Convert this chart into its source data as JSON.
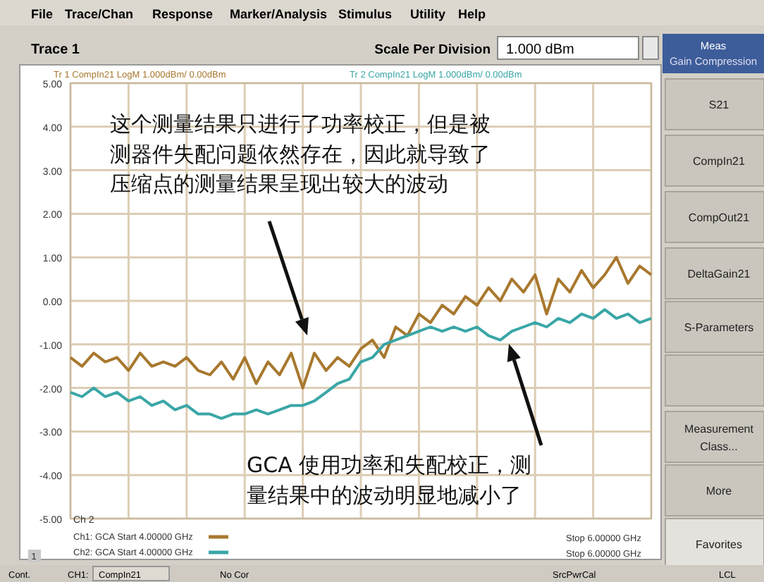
{
  "chart_data": {
    "type": "line",
    "categories": [
      null,
      null,
      null,
      null,
      null,
      null,
      null,
      null,
      null,
      null,
      null,
      null,
      null,
      null,
      null,
      null,
      null,
      null,
      null,
      null,
      null,
      null,
      null,
      null,
      null,
      null,
      null,
      null,
      null,
      null,
      null,
      null,
      null,
      null,
      null,
      null,
      null,
      null,
      null,
      null,
      null,
      null,
      null,
      null,
      null,
      null,
      null,
      null,
      null,
      null,
      null
    ],
    "ylim": [
      -5,
      5
    ],
    "yticks": [
      {
        "value": 5,
        "label": "5.00"
      },
      {
        "value": 4,
        "label": "4.00"
      },
      {
        "value": 3,
        "label": "3.00"
      },
      {
        "value": 2,
        "label": "2.00"
      },
      {
        "value": 1,
        "label": "1.00"
      },
      {
        "value": 0,
        "label": "0.00"
      },
      {
        "value": -1,
        "label": "-1.00"
      },
      {
        "value": -2,
        "label": "-2.00"
      },
      {
        "value": -3,
        "label": "-3.00"
      },
      {
        "value": -4,
        "label": "-4.00"
      },
      {
        "value": -5,
        "label": "-5.00"
      }
    ],
    "grid": true,
    "marker": "none",
    "line_style": "solid",
    "series": [
      {
        "name": "Tr 1  CompIn21 LogM 1.000dBm/  0.00dBm",
        "color": "#a8782e",
        "values": [
          -1.3,
          -1.5,
          -1.2,
          -1.4,
          -1.3,
          -1.6,
          -1.2,
          -1.5,
          -1.4,
          -1.5,
          -1.3,
          -1.6,
          -1.7,
          -1.4,
          -1.8,
          -1.3,
          -1.9,
          -1.4,
          -1.7,
          -1.2,
          -2.0,
          -1.2,
          -1.6,
          -1.3,
          -1.5,
          -1.1,
          -0.9,
          -1.3,
          -0.6,
          -0.8,
          -0.3,
          -0.5,
          -0.1,
          -0.3,
          0.1,
          -0.1,
          0.3,
          0.0,
          0.5,
          0.2,
          0.6,
          -0.3,
          0.5,
          0.2,
          0.7,
          0.3,
          0.6,
          1.0,
          0.4,
          0.8,
          0.6
        ]
      },
      {
        "name": "Tr 2  CompIn21 LogM 1.000dBm/  0.00dBm",
        "color": "#3aa6a6",
        "values": [
          -2.1,
          -2.2,
          -2.0,
          -2.2,
          -2.1,
          -2.3,
          -2.2,
          -2.4,
          -2.3,
          -2.5,
          -2.4,
          -2.6,
          -2.6,
          -2.7,
          -2.6,
          -2.6,
          -2.5,
          -2.6,
          -2.5,
          -2.4,
          -2.4,
          -2.3,
          -2.1,
          -1.9,
          -1.8,
          -1.4,
          -1.3,
          -1.0,
          -0.9,
          -0.8,
          -0.7,
          -0.6,
          -0.7,
          -0.6,
          -0.7,
          -0.6,
          -0.8,
          -0.9,
          -0.7,
          -0.6,
          -0.5,
          -0.6,
          -0.4,
          -0.5,
          -0.3,
          -0.4,
          -0.2,
          -0.4,
          -0.3,
          -0.5,
          -0.4
        ]
      }
    ],
    "annotations": [
      "File",
      "Trace/Chan",
      "Response",
      "Marker/Analysis",
      "Stimulus",
      "Utility",
      "Help",
      "Trace 1",
      "Scale Per Division",
      "1.000 dBm",
      "Meas",
      "Gain Compression",
      "S21",
      "CompIn21",
      "CompOut21",
      "DeltaGain21",
      "S-Parameters",
      "Measurement\nClass...",
      "More",
      "Favorites",
      "Ch 2",
      "Ch1: GCA Start  4.00000 GHz",
      "Ch2: GCA Start  4.00000 GHz",
      "Stop  6.00000 GHz",
      "Stop  6.00000 GHz",
      "Cont.",
      "CH1:",
      "CompIn21",
      "No Cor",
      "SrcPwrCal",
      "LCL",
      "1",
      "这个测量结果只进行了功率校正，但是被测器件失配问题依然存在，因此就导致了压缩点的测量结果呈现出较大的波动",
      "GCA 使用功率和失配校正，测量结果中的波动明显地减小了"
    ]
  }
}
